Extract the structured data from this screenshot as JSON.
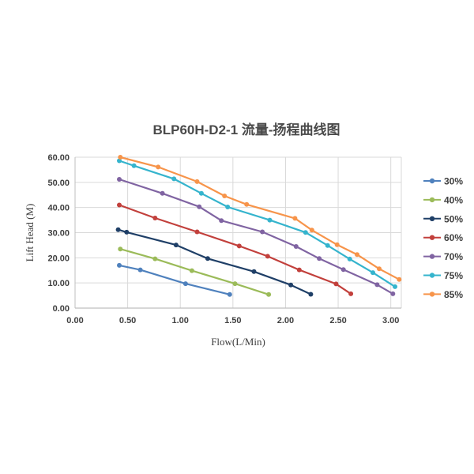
{
  "page": {
    "background": "#ffffff"
  },
  "chart_data": {
    "type": "line",
    "title": "BLP60H-D2-1 流量-扬程曲线图",
    "xlabel": "Flow(L/Min)",
    "ylabel": "Lift Head (M)",
    "xlim": [
      0,
      3.1
    ],
    "ylim": [
      0,
      60
    ],
    "x_ticks": [
      0,
      0.5,
      1.0,
      1.5,
      2.0,
      2.5,
      3.0
    ],
    "x_tick_labels": [
      "0.00",
      "0.50",
      "1.00",
      "1.50",
      "2.00",
      "2.50",
      "3.00"
    ],
    "y_ticks": [
      0,
      10,
      20,
      30,
      40,
      50,
      60
    ],
    "y_tick_labels": [
      "0.00",
      "10.00",
      "20.00",
      "30.00",
      "40.00",
      "50.00",
      "60.00"
    ],
    "grid": true,
    "legend_position": "right",
    "series": [
      {
        "name": "30%",
        "color": "#4f81bd",
        "points": [
          [
            0.42,
            17.0
          ],
          [
            0.62,
            15.2
          ],
          [
            1.05,
            9.7
          ],
          [
            1.47,
            5.4
          ]
        ]
      },
      {
        "name": "40%",
        "color": "#9bbb59",
        "points": [
          [
            0.43,
            23.5
          ],
          [
            0.76,
            19.6
          ],
          [
            1.11,
            14.9
          ],
          [
            1.52,
            9.7
          ],
          [
            1.84,
            5.4
          ]
        ]
      },
      {
        "name": "50%",
        "color": "#1f3f67",
        "points": [
          [
            0.41,
            31.2
          ],
          [
            0.49,
            30.2
          ],
          [
            0.96,
            25.1
          ],
          [
            1.26,
            19.7
          ],
          [
            1.7,
            14.5
          ],
          [
            2.05,
            9.2
          ],
          [
            2.24,
            5.5
          ]
        ]
      },
      {
        "name": "60%",
        "color": "#c2403c",
        "points": [
          [
            0.42,
            41.0
          ],
          [
            0.76,
            35.8
          ],
          [
            1.16,
            30.3
          ],
          [
            1.56,
            24.7
          ],
          [
            1.83,
            20.6
          ],
          [
            2.13,
            15.2
          ],
          [
            2.48,
            9.6
          ],
          [
            2.62,
            5.7
          ]
        ]
      },
      {
        "name": "70%",
        "color": "#8064a2",
        "points": [
          [
            0.42,
            51.2
          ],
          [
            0.83,
            45.6
          ],
          [
            1.18,
            40.3
          ],
          [
            1.39,
            34.8
          ],
          [
            1.78,
            30.3
          ],
          [
            2.1,
            24.5
          ],
          [
            2.32,
            19.7
          ],
          [
            2.55,
            15.3
          ],
          [
            2.87,
            9.3
          ],
          [
            3.02,
            5.7
          ]
        ]
      },
      {
        "name": "75%",
        "color": "#35b4cd",
        "points": [
          [
            0.42,
            58.6
          ],
          [
            0.56,
            56.6
          ],
          [
            0.94,
            51.4
          ],
          [
            1.2,
            45.6
          ],
          [
            1.45,
            40.2
          ],
          [
            1.85,
            35.0
          ],
          [
            2.19,
            30.1
          ],
          [
            2.4,
            24.9
          ],
          [
            2.61,
            19.5
          ],
          [
            2.83,
            14.1
          ],
          [
            3.04,
            8.5
          ]
        ]
      },
      {
        "name": "85%",
        "color": "#f7944a",
        "points": [
          [
            0.43,
            60.0
          ],
          [
            0.79,
            56.1
          ],
          [
            1.16,
            50.3
          ],
          [
            1.42,
            44.6
          ],
          [
            1.63,
            41.2
          ],
          [
            2.09,
            35.7
          ],
          [
            2.25,
            31.0
          ],
          [
            2.49,
            25.2
          ],
          [
            2.68,
            21.3
          ],
          [
            2.89,
            15.6
          ],
          [
            3.08,
            11.4
          ]
        ]
      }
    ],
    "colors": {
      "gridline": "#d9d9d9",
      "axis_line": "#bfbfbf",
      "tick_text": "#404040",
      "title_text": "#4a4a4a",
      "legend_text": "#404040"
    }
  }
}
